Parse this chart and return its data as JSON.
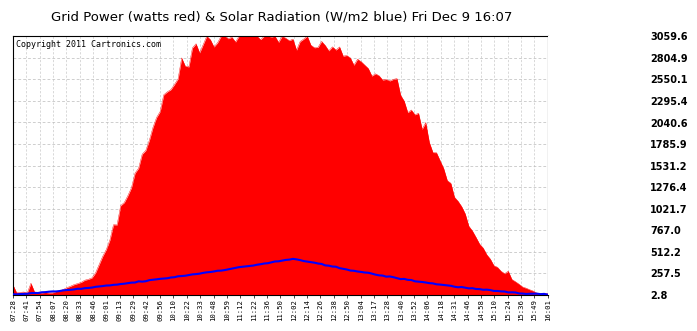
{
  "title": "Grid Power (watts red) & Solar Radiation (W/m2 blue) Fri Dec 9 16:07",
  "copyright": "Copyright 2011 Cartronics.com",
  "yticks": [
    2.8,
    257.5,
    512.2,
    767.0,
    1021.7,
    1276.4,
    1531.2,
    1785.9,
    2040.6,
    2295.4,
    2550.1,
    2804.9,
    3059.6
  ],
  "ymin": 2.8,
  "ymax": 3059.6,
  "bg_color": "#ffffff",
  "plot_bg_color": "#ffffff",
  "grid_color": "#aaaaaa",
  "red_fill_color": "#ff0000",
  "blue_line_color": "#0000ff",
  "x_labels": [
    "07:28",
    "07:41",
    "07:54",
    "08:07",
    "08:20",
    "08:33",
    "08:46",
    "09:01",
    "09:13",
    "09:29",
    "09:42",
    "09:56",
    "10:10",
    "10:22",
    "10:33",
    "10:48",
    "10:59",
    "11:12",
    "11:22",
    "11:36",
    "11:50",
    "12:02",
    "12:14",
    "12:26",
    "12:38",
    "12:50",
    "13:04",
    "13:17",
    "13:28",
    "13:40",
    "13:52",
    "14:06",
    "14:18",
    "14:31",
    "14:46",
    "14:58",
    "15:10",
    "15:24",
    "15:36",
    "15:49",
    "16:01"
  ]
}
